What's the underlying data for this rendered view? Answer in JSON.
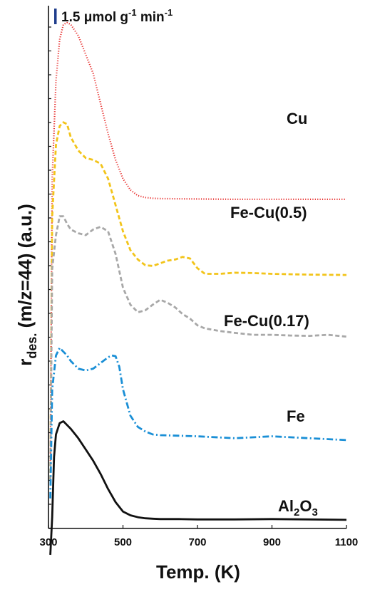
{
  "chart_data": {
    "type": "line",
    "xlabel": "Temp. (K)",
    "ylabel": {
      "main": "r",
      "sub": "des.",
      "rest": " (m/z=44) (a.u.)"
    },
    "scale_bar": {
      "text": "1.5 μmol g",
      "sup1": "-1",
      "mid": " min",
      "sup2": "-1",
      "color": "#1f3d8c"
    },
    "xlim": [
      300,
      1100
    ],
    "xticks": [
      "300",
      "500",
      "700",
      "900",
      "1100"
    ],
    "xtick_values": [
      300,
      500,
      700,
      900,
      1100
    ],
    "grid": false,
    "legend": "labels placed beside each curve",
    "series": [
      {
        "name": "Cu",
        "label_main": "Cu",
        "label_sub": "",
        "color": "#e8302f",
        "dash": "dotted",
        "x": [
          305,
          310,
          320,
          330,
          340,
          350,
          360,
          380,
          400,
          420,
          440,
          460,
          480,
          500,
          520,
          540,
          560,
          580,
          600,
          700,
          800,
          900,
          1000,
          1100
        ],
        "y": [
          1.5,
          9.0,
          11.6,
          12.7,
          13.1,
          13.15,
          13.1,
          12.8,
          12.3,
          11.8,
          11.0,
          10.2,
          9.5,
          9.0,
          8.7,
          8.55,
          8.5,
          8.48,
          8.47,
          8.46,
          8.45,
          8.45,
          8.45,
          8.45
        ]
      },
      {
        "name": "Fe-Cu(0.5)",
        "label_main": "Fe-Cu(0.5)",
        "label_sub": "",
        "color": "#f2c41a",
        "dash": "dashed",
        "x": [
          305,
          310,
          320,
          330,
          340,
          350,
          360,
          380,
          400,
          420,
          440,
          460,
          480,
          500,
          520,
          540,
          560,
          580,
          600,
          620,
          640,
          660,
          680,
          700,
          720,
          760,
          800,
          850,
          900,
          1000,
          1100
        ],
        "y": [
          1.0,
          8.0,
          9.9,
          10.4,
          10.5,
          10.45,
          10.1,
          9.75,
          9.55,
          9.5,
          9.4,
          9.0,
          8.3,
          7.6,
          7.1,
          6.85,
          6.7,
          6.68,
          6.75,
          6.82,
          6.85,
          6.92,
          6.88,
          6.62,
          6.47,
          6.47,
          6.5,
          6.49,
          6.47,
          6.45,
          6.44
        ]
      },
      {
        "name": "Fe-Cu(0.17)",
        "label_main": "Fe-Cu(0.17)",
        "label_sub": "",
        "color": "#a8a8a8",
        "dash": "dashed",
        "x": [
          305,
          310,
          320,
          330,
          340,
          350,
          360,
          380,
          400,
          420,
          440,
          460,
          480,
          500,
          520,
          540,
          560,
          580,
          600,
          620,
          640,
          660,
          680,
          700,
          720,
          760,
          800,
          850,
          900,
          950,
          1000,
          1050,
          1100
        ],
        "y": [
          1.0,
          6.6,
          7.5,
          8.0,
          8.0,
          7.8,
          7.65,
          7.55,
          7.5,
          7.65,
          7.72,
          7.6,
          7.0,
          6.1,
          5.65,
          5.45,
          5.5,
          5.65,
          5.78,
          5.7,
          5.58,
          5.4,
          5.28,
          5.1,
          5.02,
          4.95,
          4.9,
          4.85,
          4.85,
          4.83,
          4.82,
          4.85,
          4.8
        ]
      },
      {
        "name": "Fe",
        "label_main": "Fe",
        "label_sub": "",
        "color": "#1a8fd6",
        "dash": "dashdot",
        "x": [
          305,
          310,
          320,
          330,
          340,
          350,
          360,
          380,
          400,
          420,
          440,
          460,
          470,
          480,
          490,
          500,
          520,
          540,
          560,
          580,
          600,
          700,
          800,
          900,
          1000,
          1100
        ],
        "y": [
          0.5,
          3.4,
          4.3,
          4.5,
          4.4,
          4.3,
          4.15,
          3.95,
          3.9,
          3.95,
          4.1,
          4.25,
          4.3,
          4.28,
          4.0,
          3.4,
          2.7,
          2.4,
          2.28,
          2.2,
          2.18,
          2.15,
          2.1,
          2.15,
          2.1,
          2.05
        ]
      },
      {
        "name": "Al2O3",
        "label_main": "Al",
        "label_sub": "2",
        "label_rest": "O",
        "label_sub2": "3",
        "color": "#111111",
        "dash": "solid",
        "x": [
          305,
          310,
          315,
          320,
          330,
          340,
          350,
          360,
          380,
          400,
          420,
          440,
          460,
          480,
          500,
          520,
          540,
          560,
          580,
          600,
          650,
          700,
          800,
          900,
          1000,
          1100
        ],
        "y": [
          -1.0,
          0.0,
          1.6,
          2.2,
          2.5,
          2.55,
          2.45,
          2.35,
          2.1,
          1.8,
          1.5,
          1.15,
          0.75,
          0.4,
          0.15,
          0.05,
          0.0,
          -0.03,
          -0.04,
          -0.05,
          -0.05,
          -0.06,
          -0.06,
          -0.05,
          -0.06,
          -0.07
        ]
      }
    ]
  }
}
